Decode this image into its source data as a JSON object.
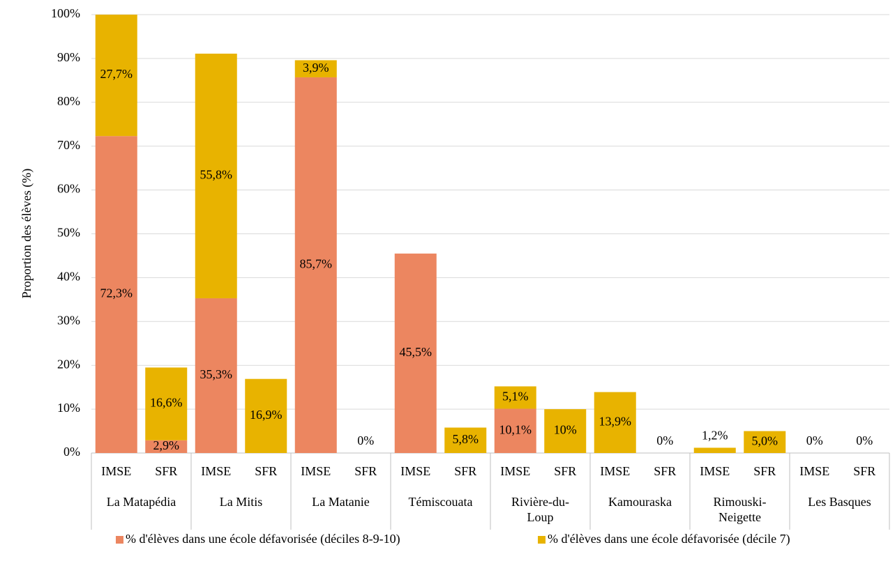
{
  "chart_data": {
    "type": "stacked_bar",
    "y_label": "Proportion des élèves (%)",
    "categories": [
      "IMSE",
      "SFR",
      "IMSE",
      "SFR",
      "IMSE",
      "SFR",
      "IMSE",
      "SFR",
      "IMSE",
      "SFR",
      "IMSE",
      "SFR",
      "IMSE",
      "SFR",
      "IMSE",
      "SFR"
    ],
    "groups": [
      [
        "La Matapédia"
      ],
      [
        "La Mitis"
      ],
      [
        "La Matanie"
      ],
      [
        "Témiscouata"
      ],
      [
        "Rivière-du-",
        "Loup"
      ],
      [
        "Kamouraska"
      ],
      [
        "Rimouski-",
        "Neigette"
      ],
      [
        "Les Basques"
      ]
    ],
    "series": [
      {
        "name": "% d'élèves dans une école défavorisée (déciles 8-9-10)",
        "color": "#ec8660",
        "values": [
          72.3,
          2.9,
          35.3,
          0,
          85.7,
          0,
          45.5,
          0,
          10.1,
          0,
          0,
          0,
          0,
          0,
          0,
          0
        ],
        "value_labels": [
          "72,3%",
          "2,9%",
          "35,3%",
          null,
          "85,7%",
          null,
          "45,5%",
          null,
          "10,1%",
          null,
          null,
          null,
          null,
          null,
          null,
          null
        ]
      },
      {
        "name": "% d'élèves dans une école défavorisée (décile 7)",
        "color": "#e8b300",
        "values": [
          27.7,
          16.6,
          55.8,
          16.9,
          3.9,
          0,
          0,
          5.8,
          5.1,
          10,
          13.9,
          0,
          1.2,
          5.0,
          0,
          0
        ],
        "value_labels": [
          "27,7%",
          "16,6%",
          "55,8%",
          "16,9%",
          "3,9%",
          "0%",
          null,
          "5,8%",
          "5,1%",
          "10%",
          "13,9%",
          "0%",
          "1,2%",
          "5,0%",
          "0%",
          "0%"
        ]
      }
    ],
    "ylim": [
      0,
      100
    ],
    "yticks": [
      {
        "value": 0,
        "label": "0%"
      },
      {
        "value": 10,
        "label": "10%"
      },
      {
        "value": 20,
        "label": "20%"
      },
      {
        "value": 30,
        "label": "30%"
      },
      {
        "value": 40,
        "label": "40%"
      },
      {
        "value": 50,
        "label": "50%"
      },
      {
        "value": 60,
        "label": "60%"
      },
      {
        "value": 70,
        "label": "70%"
      },
      {
        "value": 80,
        "label": "80%"
      },
      {
        "value": 90,
        "label": "90%"
      },
      {
        "value": 100,
        "label": "100%"
      }
    ],
    "grid": true,
    "legend": "bottom"
  }
}
